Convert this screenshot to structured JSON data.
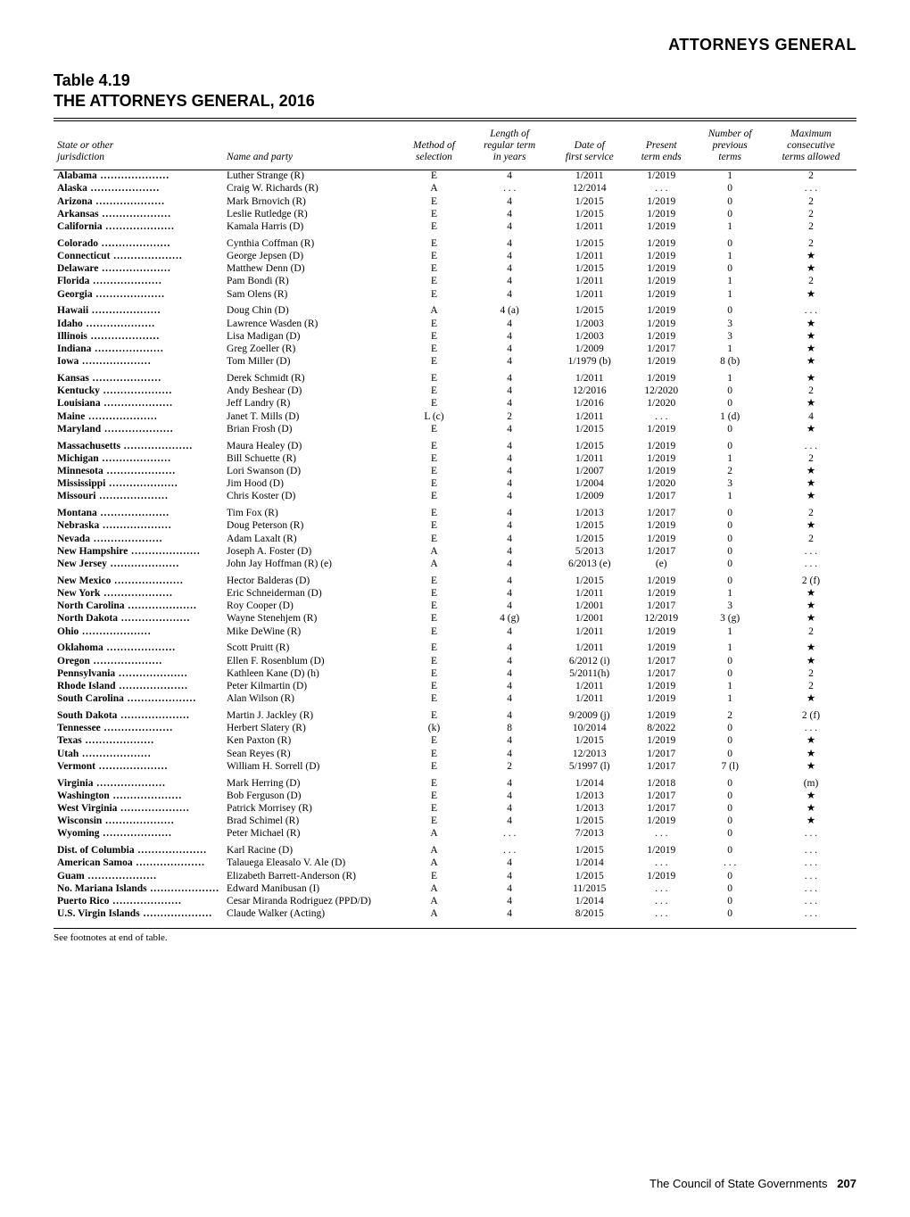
{
  "section_header": "ATTORNEYS GENERAL",
  "table_number": "Table 4.19",
  "table_title": "THE ATTORNEYS GENERAL, 2016",
  "columns": [
    "State or other jurisdiction",
    "Name and party",
    "Method of selection",
    "Length of regular term in years",
    "Date of first service",
    "Present term ends",
    "Number of previous terms",
    "Maximum consecutive terms allowed"
  ],
  "groups": [
    [
      {
        "jur": "Alabama",
        "name": "Luther Strange (R)",
        "method": "E",
        "len": "4",
        "date": "1/2011",
        "ends": "1/2019",
        "prev": "1",
        "max": "2"
      },
      {
        "jur": "Alaska",
        "name": "Craig W. Richards (R)",
        "method": "A",
        "len": ". . .",
        "date": "12/2014",
        "ends": ". . .",
        "prev": "0",
        "max": ". . ."
      },
      {
        "jur": "Arizona",
        "name": "Mark Brnovich (R)",
        "method": "E",
        "len": "4",
        "date": "1/2015",
        "ends": "1/2019",
        "prev": "0",
        "max": "2"
      },
      {
        "jur": "Arkansas",
        "name": "Leslie Rutledge (R)",
        "method": "E",
        "len": "4",
        "date": "1/2015",
        "ends": "1/2019",
        "prev": "0",
        "max": "2"
      },
      {
        "jur": "California",
        "name": "Kamala Harris (D)",
        "method": "E",
        "len": "4",
        "date": "1/2011",
        "ends": "1/2019",
        "prev": "1",
        "max": "2"
      }
    ],
    [
      {
        "jur": "Colorado",
        "name": "Cynthia Coffman (R)",
        "method": "E",
        "len": "4",
        "date": "1/2015",
        "ends": "1/2019",
        "prev": "0",
        "max": "2"
      },
      {
        "jur": "Connecticut",
        "name": "George Jepsen (D)",
        "method": "E",
        "len": "4",
        "date": "1/2011",
        "ends": "1/2019",
        "prev": "1",
        "max": "★"
      },
      {
        "jur": "Delaware",
        "name": "Matthew Denn (D)",
        "method": "E",
        "len": "4",
        "date": "1/2015",
        "ends": "1/2019",
        "prev": "0",
        "max": "★"
      },
      {
        "jur": "Florida",
        "name": "Pam Bondi (R)",
        "method": "E",
        "len": "4",
        "date": "1/2011",
        "ends": "1/2019",
        "prev": "1",
        "max": "2"
      },
      {
        "jur": "Georgia",
        "name": "Sam Olens (R)",
        "method": "E",
        "len": "4",
        "date": "1/2011",
        "ends": "1/2019",
        "prev": "1",
        "max": "★"
      }
    ],
    [
      {
        "jur": "Hawaii",
        "name": "Doug Chin (D)",
        "method": "A",
        "len": "4 (a)",
        "date": "1/2015",
        "ends": "1/2019",
        "prev": "0",
        "max": ". . ."
      },
      {
        "jur": "Idaho",
        "name": "Lawrence Wasden (R)",
        "method": "E",
        "len": "4",
        "date": "1/2003",
        "ends": "1/2019",
        "prev": "3",
        "max": "★"
      },
      {
        "jur": "Illinois",
        "name": "Lisa Madigan (D)",
        "method": "E",
        "len": "4",
        "date": "1/2003",
        "ends": "1/2019",
        "prev": "3",
        "max": "★"
      },
      {
        "jur": "Indiana",
        "name": "Greg Zoeller (R)",
        "method": "E",
        "len": "4",
        "date": "1/2009",
        "ends": "1/2017",
        "prev": "1",
        "max": "★"
      },
      {
        "jur": "Iowa",
        "name": "Tom Miller (D)",
        "method": "E",
        "len": "4",
        "date": "1/1979 (b)",
        "ends": "1/2019",
        "prev": "8 (b)",
        "max": "★"
      }
    ],
    [
      {
        "jur": "Kansas",
        "name": "Derek Schmidt (R)",
        "method": "E",
        "len": "4",
        "date": "1/2011",
        "ends": "1/2019",
        "prev": "1",
        "max": "★"
      },
      {
        "jur": "Kentucky",
        "name": "Andy Beshear (D)",
        "method": "E",
        "len": "4",
        "date": "12/2016",
        "ends": "12/2020",
        "prev": "0",
        "max": "2"
      },
      {
        "jur": "Louisiana",
        "name": "Jeff Landry (R)",
        "method": "E",
        "len": "4",
        "date": "1/2016",
        "ends": "1/2020",
        "prev": "0",
        "max": "★"
      },
      {
        "jur": "Maine",
        "name": "Janet T. Mills (D)",
        "method": "L (c)",
        "len": "2",
        "date": "1/2011",
        "ends": ". . .",
        "prev": "1 (d)",
        "max": "4"
      },
      {
        "jur": "Maryland",
        "name": "Brian Frosh (D)",
        "method": "E",
        "len": "4",
        "date": "1/2015",
        "ends": "1/2019",
        "prev": "0",
        "max": "★"
      }
    ],
    [
      {
        "jur": "Massachusetts",
        "name": "Maura Healey (D)",
        "method": "E",
        "len": "4",
        "date": "1/2015",
        "ends": "1/2019",
        "prev": "0",
        "max": ". . ."
      },
      {
        "jur": "Michigan",
        "name": "Bill Schuette (R)",
        "method": "E",
        "len": "4",
        "date": "1/2011",
        "ends": "1/2019",
        "prev": "1",
        "max": "2"
      },
      {
        "jur": "Minnesota",
        "name": "Lori Swanson (D)",
        "method": "E",
        "len": "4",
        "date": "1/2007",
        "ends": "1/2019",
        "prev": "2",
        "max": "★"
      },
      {
        "jur": "Mississippi",
        "name": "Jim Hood (D)",
        "method": "E",
        "len": "4",
        "date": "1/2004",
        "ends": "1/2020",
        "prev": "3",
        "max": "★"
      },
      {
        "jur": "Missouri",
        "name": "Chris Koster (D)",
        "method": "E",
        "len": "4",
        "date": "1/2009",
        "ends": "1/2017",
        "prev": "1",
        "max": "★"
      }
    ],
    [
      {
        "jur": "Montana",
        "name": "Tim Fox (R)",
        "method": "E",
        "len": "4",
        "date": "1/2013",
        "ends": "1/2017",
        "prev": "0",
        "max": "2"
      },
      {
        "jur": "Nebraska",
        "name": "Doug Peterson (R)",
        "method": "E",
        "len": "4",
        "date": "1/2015",
        "ends": "1/2019",
        "prev": "0",
        "max": "★"
      },
      {
        "jur": "Nevada",
        "name": "Adam Laxalt (R)",
        "method": "E",
        "len": "4",
        "date": "1/2015",
        "ends": "1/2019",
        "prev": "0",
        "max": "2"
      },
      {
        "jur": "New Hampshire",
        "name": "Joseph A. Foster (D)",
        "method": "A",
        "len": "4",
        "date": "5/2013",
        "ends": "1/2017",
        "prev": "0",
        "max": ". . ."
      },
      {
        "jur": "New Jersey",
        "name": "John Jay Hoffman (R) (e)",
        "method": "A",
        "len": "4",
        "date": "6/2013 (e)",
        "ends": "(e)",
        "prev": "0",
        "max": ". . ."
      }
    ],
    [
      {
        "jur": "New Mexico",
        "name": "Hector Balderas (D)",
        "method": "E",
        "len": "4",
        "date": "1/2015",
        "ends": "1/2019",
        "prev": "0",
        "max": "2 (f)"
      },
      {
        "jur": "New York",
        "name": "Eric Schneiderman (D)",
        "method": "E",
        "len": "4",
        "date": "1/2011",
        "ends": "1/2019",
        "prev": "1",
        "max": "★"
      },
      {
        "jur": "North Carolina",
        "name": "Roy Cooper (D)",
        "method": "E",
        "len": "4",
        "date": "1/2001",
        "ends": "1/2017",
        "prev": "3",
        "max": "★"
      },
      {
        "jur": "North Dakota",
        "name": "Wayne Stenehjem (R)",
        "method": "E",
        "len": "4 (g)",
        "date": "1/2001",
        "ends": "12/2019",
        "prev": "3 (g)",
        "max": "★"
      },
      {
        "jur": "Ohio",
        "name": "Mike DeWine (R)",
        "method": "E",
        "len": "4",
        "date": "1/2011",
        "ends": "1/2019",
        "prev": "1",
        "max": "2"
      }
    ],
    [
      {
        "jur": "Oklahoma",
        "name": "Scott Pruitt (R)",
        "method": "E",
        "len": "4",
        "date": "1/2011",
        "ends": "1/2019",
        "prev": "1",
        "max": "★"
      },
      {
        "jur": "Oregon",
        "name": "Ellen F. Rosenblum (D)",
        "method": "E",
        "len": "4",
        "date": "6/2012 (i)",
        "ends": "1/2017",
        "prev": "0",
        "max": "★"
      },
      {
        "jur": "Pennsylvania",
        "name": "Kathleen Kane (D) (h)",
        "method": "E",
        "len": "4",
        "date": "5/2011(h)",
        "ends": "1/2017",
        "prev": "0",
        "max": "2"
      },
      {
        "jur": "Rhode Island",
        "name": "Peter Kilmartin (D)",
        "method": "E",
        "len": "4",
        "date": "1/2011",
        "ends": "1/2019",
        "prev": "1",
        "max": "2"
      },
      {
        "jur": "South Carolina",
        "name": "Alan Wilson (R)",
        "method": "E",
        "len": "4",
        "date": "1/2011",
        "ends": "1/2019",
        "prev": "1",
        "max": "★"
      }
    ],
    [
      {
        "jur": "South Dakota",
        "name": "Martin J. Jackley (R)",
        "method": "E",
        "len": "4",
        "date": "9/2009 (j)",
        "ends": "1/2019",
        "prev": "2",
        "max": "2 (f)"
      },
      {
        "jur": "Tennessee",
        "name": "Herbert Slatery (R)",
        "method": "(k)",
        "len": "8",
        "date": "10/2014",
        "ends": "8/2022",
        "prev": "0",
        "max": ". . ."
      },
      {
        "jur": "Texas",
        "name": "Ken Paxton (R)",
        "method": "E",
        "len": "4",
        "date": "1/2015",
        "ends": "1/2019",
        "prev": "0",
        "max": "★"
      },
      {
        "jur": "Utah",
        "name": "Sean Reyes (R)",
        "method": "E",
        "len": "4",
        "date": "12/2013",
        "ends": "1/2017",
        "prev": "0",
        "max": "★"
      },
      {
        "jur": "Vermont",
        "name": "William H. Sorrell (D)",
        "method": "E",
        "len": "2",
        "date": "5/1997 (l)",
        "ends": "1/2017",
        "prev": "7 (l)",
        "max": "★"
      }
    ],
    [
      {
        "jur": "Virginia",
        "name": "Mark Herring (D)",
        "method": "E",
        "len": "4",
        "date": "1/2014",
        "ends": "1/2018",
        "prev": "0",
        "max": "(m)"
      },
      {
        "jur": "Washington",
        "name": "Bob Ferguson (D)",
        "method": "E",
        "len": "4",
        "date": "1/2013",
        "ends": "1/2017",
        "prev": "0",
        "max": "★"
      },
      {
        "jur": "West Virginia",
        "name": "Patrick Morrisey (R)",
        "method": "E",
        "len": "4",
        "date": "1/2013",
        "ends": "1/2017",
        "prev": "0",
        "max": "★"
      },
      {
        "jur": "Wisconsin",
        "name": "Brad Schimel (R)",
        "method": "E",
        "len": "4",
        "date": "1/2015",
        "ends": "1/2019",
        "prev": "0",
        "max": "★"
      },
      {
        "jur": "Wyoming",
        "name": "Peter Michael (R)",
        "method": "A",
        "len": ". . .",
        "date": "7/2013",
        "ends": ". . .",
        "prev": "0",
        "max": ". . ."
      }
    ],
    [
      {
        "jur": "Dist. of Columbia",
        "name": "Karl Racine (D)",
        "method": "A",
        "len": ". . .",
        "date": "1/2015",
        "ends": "1/2019",
        "prev": "0",
        "max": ". . ."
      },
      {
        "jur": "American Samoa",
        "name": "Talauega Eleasalo V. Ale (D)",
        "method": "A",
        "len": "4",
        "date": "1/2014",
        "ends": ". . .",
        "prev": ". . .",
        "max": ". . ."
      },
      {
        "jur": "Guam",
        "name": "Elizabeth Barrett-Anderson (R)",
        "method": "E",
        "len": "4",
        "date": "1/2015",
        "ends": "1/2019",
        "prev": "0",
        "max": ". . ."
      },
      {
        "jur": "No. Mariana Islands",
        "name": "Edward Manibusan (I)",
        "method": "A",
        "len": "4",
        "date": "11/2015",
        "ends": ". . .",
        "prev": "0",
        "max": ". . ."
      },
      {
        "jur": "Puerto Rico",
        "name": "Cesar Miranda Rodriguez (PPD/D)",
        "method": "A",
        "len": "4",
        "date": "1/2014",
        "ends": ". . .",
        "prev": "0",
        "max": ". . ."
      },
      {
        "jur": "U.S. Virgin Islands",
        "name": "Claude Walker (Acting)",
        "method": "A",
        "len": "4",
        "date": "8/2015",
        "ends": ". . .",
        "prev": "0",
        "max": ". . ."
      }
    ]
  ],
  "footnote": "See footnotes at end of table.",
  "footer_left": "The Council of State Governments",
  "footer_page": "207"
}
